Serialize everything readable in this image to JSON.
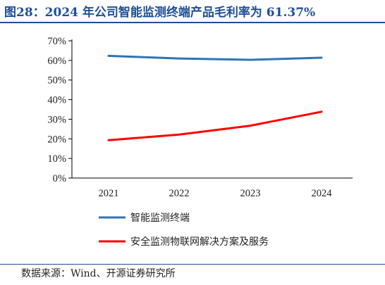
{
  "figure": {
    "title": "图28：2024 年公司智能监测终端产品毛利率为 61.37%",
    "source": "数据来源：Wind、开源证券研究所"
  },
  "chart_data": {
    "type": "line",
    "title": "",
    "xlabel": "",
    "ylabel": "",
    "categories": [
      "2021",
      "2022",
      "2023",
      "2024"
    ],
    "ylim": [
      0,
      70
    ],
    "yticks": [
      "0%",
      "10%",
      "20%",
      "30%",
      "40%",
      "50%",
      "60%",
      "70%"
    ],
    "grid": false,
    "legend_position": "bottom",
    "series": [
      {
        "name": "智能监测终端",
        "color": "#2e75b6",
        "values": [
          62.3,
          61.0,
          60.3,
          61.37
        ]
      },
      {
        "name": "安全监测物联网解决方案及服务",
        "color": "#ff0000",
        "values": [
          19.3,
          22.2,
          26.7,
          33.8
        ]
      }
    ]
  }
}
